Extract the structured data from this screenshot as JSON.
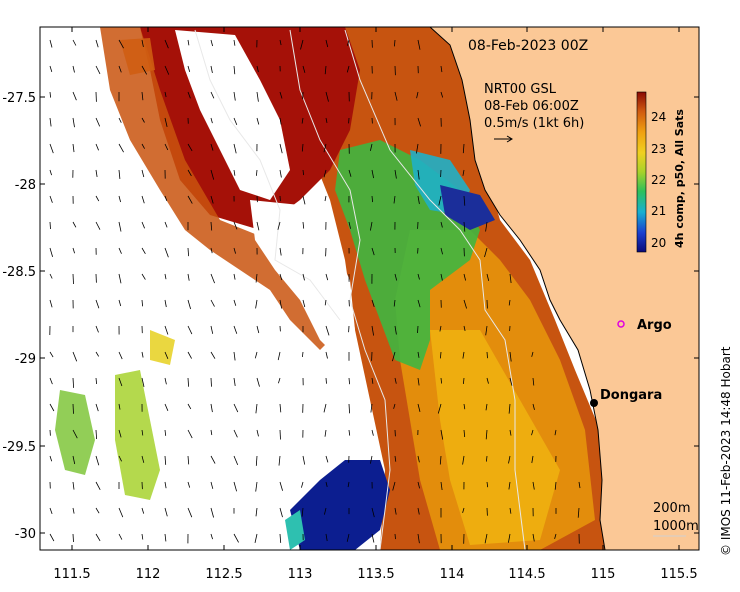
{
  "map": {
    "date_title": "08-Feb-2023 00Z",
    "current_label": {
      "line1": "NRT00 GSL",
      "line2": "08-Feb 06:00Z",
      "line3": "0.5m/s (1kt 6h)"
    },
    "colorbar": {
      "label": "4h comp, p50, All Sats",
      "ticks": [
        "24",
        "23",
        "22",
        "21",
        "20"
      ]
    },
    "places": [
      {
        "name": "Argo",
        "marker": "magenta-circle"
      },
      {
        "name": "Dongara",
        "marker": "black-dot"
      }
    ],
    "contours": {
      "depth1": "200m",
      "depth2": "1000m"
    },
    "credit": "© IMOS 11-Feb-2023 14:48 Hobart",
    "x_ticks": [
      "111.5",
      "112",
      "112.5",
      "113",
      "113.5",
      "114",
      "114.5",
      "115",
      "115.5"
    ],
    "y_ticks": [
      "-27.5",
      "-28",
      "-28.5",
      "-29",
      "-29.5",
      "-30"
    ],
    "colors": {
      "land": "#fbc896",
      "warm": "#c0410e",
      "hot": "#a00d08",
      "mid": "#e0900a",
      "green": "#3ab537",
      "cold": "#0a1a8c",
      "argo_marker": "#e000e0"
    }
  }
}
